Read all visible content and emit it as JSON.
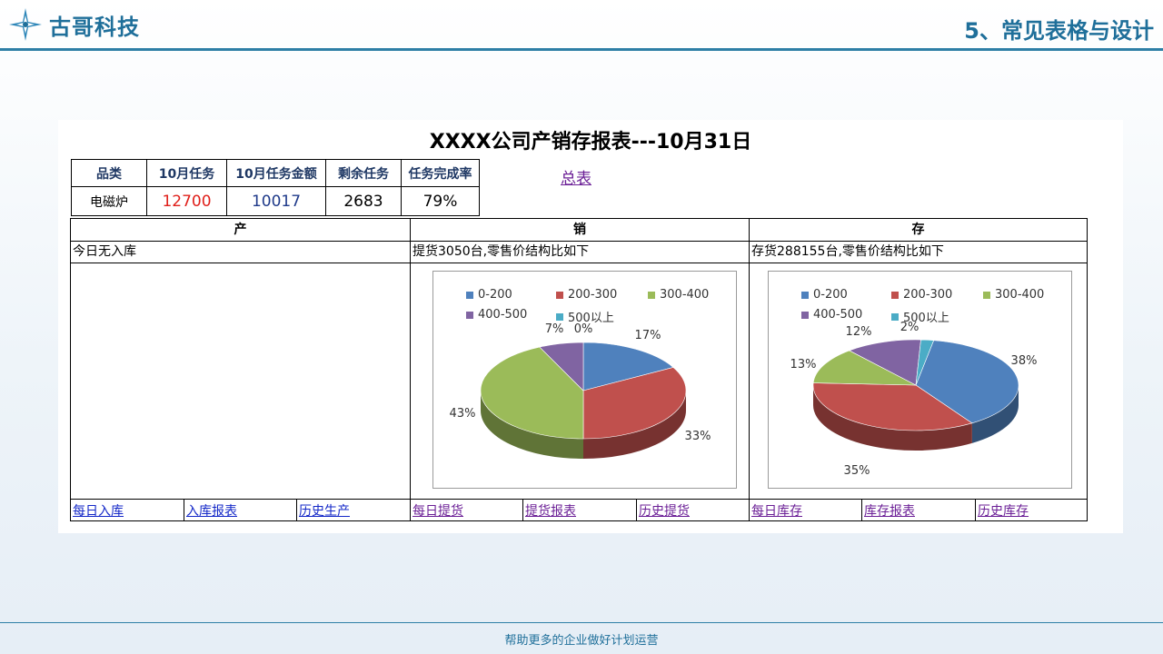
{
  "header": {
    "logo_text": "古哥科技",
    "slide_title": "5、常见表格与设计"
  },
  "report": {
    "title": "XXXX公司产销存报表---10月31日",
    "summary_headers": [
      "品类",
      "10月任务",
      "10月任务金额",
      "剩余任务",
      "任务完成率"
    ],
    "summary_values": [
      "电磁炉",
      "12700",
      "10017",
      "2683",
      "79%"
    ],
    "summary_link": "总表",
    "columns": [
      {
        "head": "产",
        "sub": "今日无入库",
        "links": [
          "每日入库",
          "入库报表",
          "历史生产"
        ]
      },
      {
        "head": "销",
        "sub": "提货3050台,零售价结构比如下",
        "links": [
          "每日提货",
          "提货报表",
          "历史提货"
        ]
      },
      {
        "head": "存",
        "sub": "存货288155台,零售价结构比如下",
        "links": [
          "每日库存",
          "库存报表",
          "历史库存"
        ]
      }
    ]
  },
  "colors": {
    "series": [
      "#4f81bd",
      "#c0504d",
      "#9bbb59",
      "#8064a2",
      "#4bacc6"
    ],
    "accent": "#1f6f9a"
  },
  "chart_data": [
    {
      "type": "pie",
      "title": "",
      "categories": [
        "0-200",
        "200-300",
        "300-400",
        "400-500",
        "500以上"
      ],
      "values": [
        17,
        33,
        43,
        7,
        0
      ],
      "labels": [
        "17%",
        "33%",
        "43%",
        "7%",
        "0%"
      ],
      "legend": "top"
    },
    {
      "type": "pie",
      "title": "",
      "categories": [
        "0-200",
        "200-300",
        "300-400",
        "400-500",
        "500以上"
      ],
      "values": [
        38,
        35,
        13,
        12,
        2
      ],
      "labels": [
        "38%",
        "35%",
        "13%",
        "12%",
        "2%"
      ],
      "legend": "top"
    }
  ],
  "footer": {
    "text": "帮助更多的企业做好计划运营"
  }
}
